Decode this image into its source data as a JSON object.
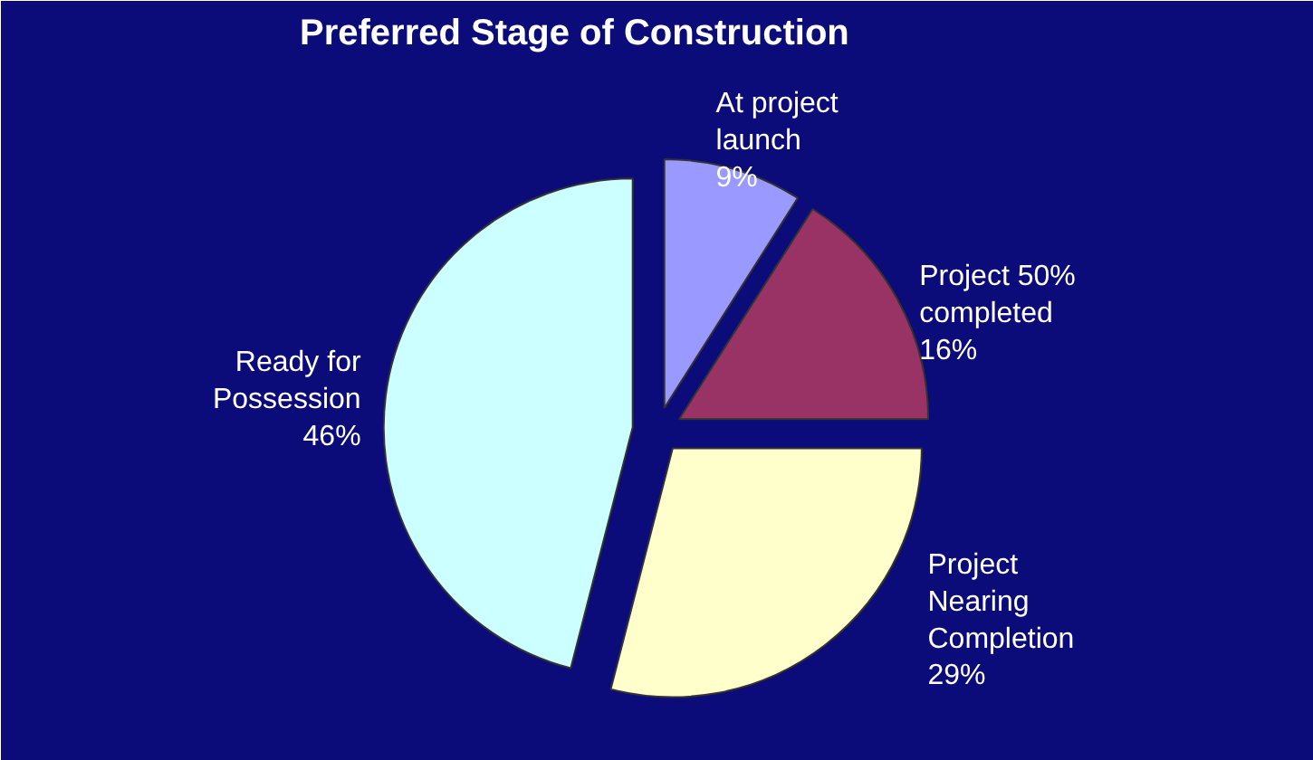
{
  "chart_data": {
    "type": "pie",
    "title": "Preferred Stage of Construction",
    "categories": [
      "At project launch",
      "Project 50% completed",
      "Project Nearing Completion",
      "Ready for Possession"
    ],
    "values": [
      9,
      16,
      29,
      46
    ],
    "colors": [
      "#9999ff",
      "#993366",
      "#ffffcc",
      "#ccffff"
    ],
    "value_labels": [
      "9%",
      "16%",
      "29%",
      "46%"
    ]
  }
}
